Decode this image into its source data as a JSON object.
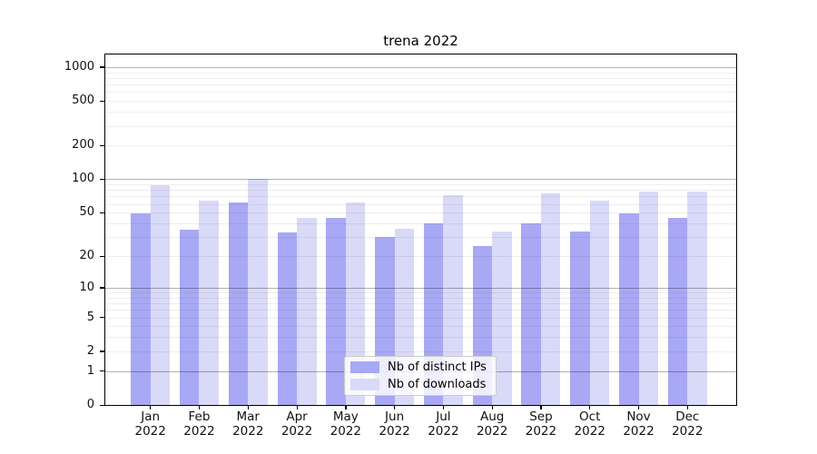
{
  "title": "trena 2022",
  "chart_data": {
    "type": "bar",
    "title": "trena 2022",
    "y_scale": "log10(value+1)",
    "grid": "horizontal major+minor",
    "legend_position": "inside lower center",
    "categories": [
      "Jan 2022",
      "Feb 2022",
      "Mar 2022",
      "Apr 2022",
      "May 2022",
      "Jun 2022",
      "Jul 2022",
      "Aug 2022",
      "Sep 2022",
      "Oct 2022",
      "Nov 2022",
      "Dec 2022"
    ],
    "series": [
      {
        "name": "Nb of distinct IPs",
        "color": "#a8a8f4",
        "values": [
          49,
          35,
          62,
          33,
          45,
          30,
          40,
          25,
          40,
          34,
          49,
          45
        ]
      },
      {
        "name": "Nb of downloads",
        "color": "#d9d9f8",
        "values": [
          88,
          64,
          100,
          45,
          62,
          36,
          72,
          34,
          75,
          64,
          77,
          77
        ]
      }
    ],
    "yticks": [
      0,
      1,
      2,
      5,
      10,
      20,
      50,
      100,
      200,
      500,
      1000
    ],
    "ylim": [
      0,
      1320
    ],
    "xlabel": "",
    "ylabel": ""
  },
  "colors": {
    "major_grid": "#b0b0b0",
    "minor_grid": "#ececef",
    "axis": "#000000",
    "legend_border": "#cccccc",
    "background": "#ffffff"
  }
}
